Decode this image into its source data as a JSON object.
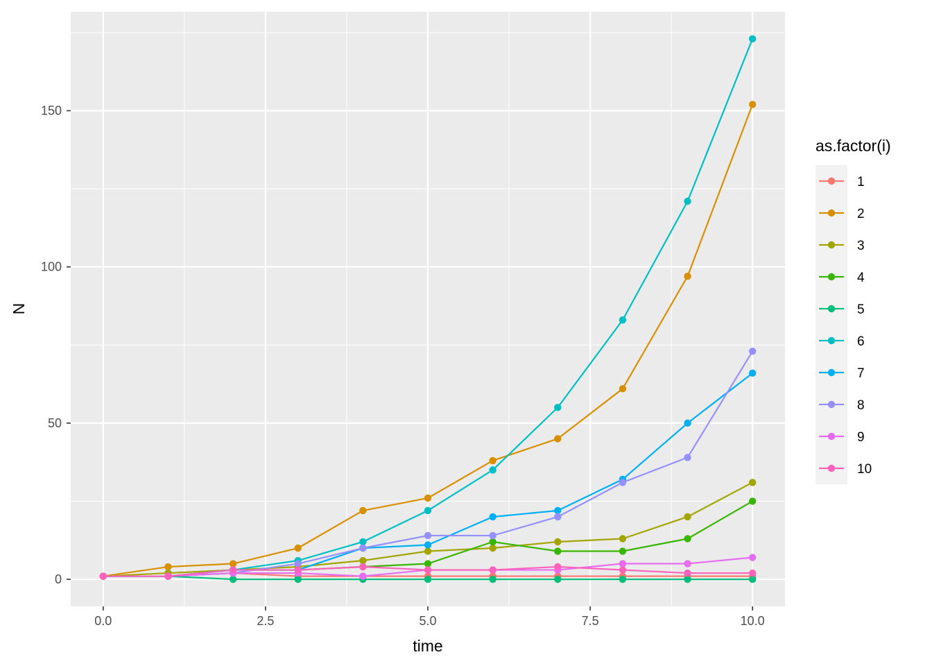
{
  "chart_data": {
    "type": "line",
    "xlabel": "time",
    "ylabel": "N",
    "xlim": [
      -0.5,
      10.5
    ],
    "ylim": [
      -8.65,
      181.65
    ],
    "x_ticks": [
      0.0,
      2.5,
      5.0,
      7.5,
      10.0
    ],
    "x_tick_labels": [
      "0.0",
      "2.5",
      "5.0",
      "7.5",
      "10.0"
    ],
    "y_ticks": [
      0,
      50,
      100,
      150
    ],
    "y_tick_labels": [
      "0",
      "50",
      "100",
      "150"
    ],
    "grid": true,
    "legend": {
      "title": "as.factor(i)",
      "position": "right"
    },
    "x": [
      0,
      1,
      2,
      3,
      4,
      5,
      6,
      7,
      8,
      9,
      10
    ],
    "series": [
      {
        "name": "1",
        "color": "#F8766D",
        "values": [
          1,
          1,
          2,
          1,
          1,
          1,
          1,
          1,
          1,
          1,
          1
        ]
      },
      {
        "name": "2",
        "color": "#D89000",
        "values": [
          1,
          4,
          5,
          10,
          22,
          26,
          38,
          45,
          61,
          97,
          152
        ]
      },
      {
        "name": "3",
        "color": "#A3A500",
        "values": [
          1,
          2,
          3,
          4,
          6,
          9,
          10,
          12,
          13,
          20,
          31
        ]
      },
      {
        "name": "4",
        "color": "#39B600",
        "values": [
          1,
          1,
          3,
          3,
          4,
          5,
          12,
          9,
          9,
          13,
          25
        ]
      },
      {
        "name": "5",
        "color": "#00BF7D",
        "values": [
          1,
          1,
          0,
          0,
          0,
          0,
          0,
          0,
          0,
          0,
          0
        ]
      },
      {
        "name": "6",
        "color": "#00BFC4",
        "values": [
          1,
          1,
          3,
          6,
          12,
          22,
          35,
          55,
          83,
          121,
          173
        ]
      },
      {
        "name": "7",
        "color": "#00B0F6",
        "values": [
          1,
          1,
          3,
          3,
          10,
          11,
          20,
          22,
          32,
          50,
          66
        ]
      },
      {
        "name": "8",
        "color": "#9590FF",
        "values": [
          1,
          1,
          2,
          5,
          10,
          14,
          14,
          20,
          31,
          39,
          73
        ]
      },
      {
        "name": "9",
        "color": "#E76BF3",
        "values": [
          1,
          1,
          2,
          2,
          1,
          3,
          3,
          3,
          5,
          5,
          7
        ]
      },
      {
        "name": "10",
        "color": "#FF62BC",
        "values": [
          1,
          1,
          3,
          3,
          4,
          3,
          3,
          4,
          3,
          2,
          2
        ]
      }
    ]
  }
}
